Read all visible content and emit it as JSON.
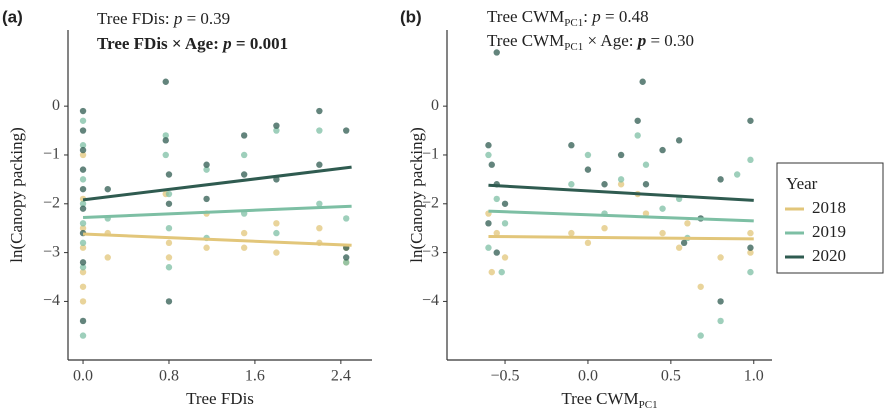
{
  "chart_data": [
    {
      "type": "scatter",
      "panel_label": "(a)",
      "annotations": [
        {
          "bold": false,
          "parts": [
            {
              "text": "Tree FDis: "
            },
            {
              "text": "p",
              "style": "italic"
            },
            {
              "text": " = 0.39"
            }
          ]
        },
        {
          "bold": true,
          "parts": [
            {
              "text": "Tree FDis × Age: "
            },
            {
              "text": "p",
              "style": "italic"
            },
            {
              "text": " = 0.001"
            }
          ]
        }
      ],
      "xlabel": [
        {
          "text": "Tree FDis"
        }
      ],
      "ylabel": "ln(Canopy packing)",
      "legend_title": "Year",
      "xlim": [
        -0.14,
        2.69
      ],
      "ylim": [
        -5.2,
        1.56
      ],
      "xticks": [
        {
          "value": 0,
          "label": "0.0"
        },
        0.8,
        1.6,
        2.4
      ],
      "yticks": [
        0,
        {
          "value": -1,
          "label": "−1"
        },
        {
          "value": -2,
          "label": "−2"
        },
        {
          "value": -3,
          "label": "−3"
        },
        {
          "value": -4,
          "label": "−4"
        }
      ],
      "series": [
        {
          "name": "2018",
          "color": "#e2c67a",
          "x": [
            0,
            0,
            0,
            0,
            0,
            0,
            0,
            0.23,
            0.23,
            0.77,
            0.8,
            0.8,
            1.15,
            1.15,
            1.5,
            1.5,
            1.8,
            1.8,
            2.2,
            2.2,
            2.45,
            2.45
          ],
          "values": [
            -1.0,
            -1.9,
            -2.5,
            -2.9,
            -3.4,
            -3.7,
            -4.0,
            -2.6,
            -3.1,
            -1.8,
            -2.8,
            -3.1,
            -2.2,
            -2.9,
            -2.6,
            -2.9,
            -2.4,
            -3.0,
            -2.5,
            -2.8,
            -2.9,
            -3.2
          ],
          "trend": {
            "x": [
              0,
              2.5
            ],
            "y": [
              -2.62,
              -2.85
            ]
          }
        },
        {
          "name": "2019",
          "color": "#7dbfa4",
          "x": [
            0,
            0,
            0,
            0,
            0,
            0,
            0,
            0,
            0.23,
            0.77,
            0.77,
            0.8,
            0.8,
            0.8,
            1.15,
            1.15,
            1.5,
            1.5,
            1.8,
            1.8,
            2.2,
            2.2,
            2.45,
            2.45
          ],
          "values": [
            -0.3,
            -0.8,
            -1.5,
            -2.0,
            -2.4,
            -2.8,
            -3.3,
            -4.7,
            -2.3,
            -0.6,
            -1.0,
            -1.8,
            -2.5,
            -3.3,
            -1.3,
            -2.7,
            -1.0,
            -2.2,
            -0.5,
            -2.6,
            -0.5,
            -2.0,
            -2.3,
            -3.2
          ],
          "trend": {
            "x": [
              0,
              2.5
            ],
            "y": [
              -2.28,
              -2.05
            ]
          }
        },
        {
          "name": "2020",
          "color": "#2f5b50",
          "x": [
            0,
            0,
            0,
            0,
            0,
            0,
            0,
            0,
            0,
            0.23,
            0.77,
            0.77,
            0.8,
            0.8,
            0.8,
            1.15,
            1.15,
            1.5,
            1.5,
            1.8,
            1.8,
            2.2,
            2.2,
            2.45,
            2.45,
            2.45
          ],
          "values": [
            -0.1,
            -0.5,
            -0.9,
            -1.3,
            -1.7,
            -2.1,
            -2.6,
            -3.2,
            -4.4,
            -1.7,
            0.5,
            -0.7,
            -1.4,
            -2.0,
            -4.0,
            -1.2,
            -1.9,
            -0.6,
            -1.4,
            -0.4,
            -1.5,
            -0.1,
            -1.2,
            -0.5,
            -2.9,
            -3.1
          ],
          "trend": {
            "x": [
              0,
              2.5
            ],
            "y": [
              -1.92,
              -1.25
            ]
          }
        }
      ]
    },
    {
      "type": "scatter",
      "panel_label": "(b)",
      "annotations": [
        {
          "bold": false,
          "parts": [
            {
              "text": "Tree CWM"
            },
            {
              "text": "PC1",
              "style": "sub"
            },
            {
              "text": ": "
            },
            {
              "text": "p",
              "style": "italic"
            },
            {
              "text": " = 0.48"
            }
          ]
        },
        {
          "bold": false,
          "parts": [
            {
              "text": "Tree CWM"
            },
            {
              "text": "PC1",
              "style": "sub"
            },
            {
              "text": " × Age: "
            },
            {
              "text": "p",
              "style": "bold-italic"
            },
            {
              "text": " = 0.30"
            }
          ]
        }
      ],
      "xlabel": [
        {
          "text": "Tree CWM"
        },
        {
          "text": "PC1",
          "style": "sub"
        }
      ],
      "ylabel": "ln(Canopy packing)",
      "xlim": [
        -0.85,
        1.11
      ],
      "ylim": [
        -5.2,
        1.56
      ],
      "xticks": [
        {
          "value": -0.5,
          "label": "−0.5"
        },
        {
          "value": 0,
          "label": "0.0"
        },
        0.5,
        {
          "value": 1,
          "label": "1.0"
        }
      ],
      "yticks": [
        0,
        {
          "value": -1,
          "label": "−1"
        },
        {
          "value": -2,
          "label": "−2"
        },
        {
          "value": -3,
          "label": "−3"
        },
        {
          "value": -4,
          "label": "−4"
        }
      ],
      "series": [
        {
          "name": "2018",
          "color": "#e2c67a",
          "x": [
            -0.6,
            -0.55,
            -0.5,
            -0.58,
            -0.1,
            0.0,
            0.1,
            0.2,
            0.3,
            0.35,
            0.45,
            0.55,
            0.6,
            0.68,
            0.8,
            0.98,
            0.98
          ],
          "values": [
            -2.2,
            -2.6,
            -3.1,
            -3.4,
            -2.6,
            -2.8,
            -2.5,
            -1.6,
            -1.8,
            -2.2,
            -2.6,
            -2.9,
            -2.4,
            -3.7,
            -3.1,
            -2.6,
            -3.0
          ],
          "trend": {
            "x": [
              -0.6,
              1.0
            ],
            "y": [
              -2.67,
              -2.72
            ]
          }
        },
        {
          "name": "2019",
          "color": "#7dbfa4",
          "x": [
            -0.6,
            -0.55,
            -0.5,
            -0.6,
            -0.52,
            -0.1,
            0.0,
            0.1,
            0.2,
            0.3,
            0.35,
            0.45,
            0.55,
            0.6,
            0.68,
            0.8,
            0.9,
            0.98,
            0.98
          ],
          "values": [
            -1.0,
            -1.9,
            -2.4,
            -2.9,
            -3.4,
            -1.6,
            -1.0,
            -2.2,
            -1.5,
            -0.6,
            -1.2,
            -2.1,
            -1.9,
            -2.7,
            -4.7,
            -4.4,
            -1.4,
            -1.1,
            -3.4
          ],
          "trend": {
            "x": [
              -0.6,
              1.0
            ],
            "y": [
              -2.15,
              -2.35
            ]
          }
        },
        {
          "name": "2020",
          "color": "#2f5b50",
          "x": [
            -0.55,
            -0.6,
            -0.58,
            -0.55,
            -0.5,
            -0.6,
            -0.55,
            -0.1,
            0.0,
            0.1,
            0.2,
            0.3,
            0.33,
            0.35,
            0.45,
            0.55,
            0.58,
            0.68,
            0.8,
            0.8,
            0.98,
            0.98
          ],
          "values": [
            1.1,
            -0.8,
            -1.2,
            -1.6,
            -2.0,
            -2.4,
            -3.0,
            -0.8,
            -1.3,
            -1.6,
            -1.0,
            -0.3,
            0.5,
            -1.6,
            -0.9,
            -0.7,
            -2.8,
            -2.3,
            -1.5,
            -4.0,
            -0.3,
            -2.9
          ],
          "trend": {
            "x": [
              -0.6,
              1.0
            ],
            "y": [
              -1.62,
              -1.93
            ]
          }
        }
      ]
    }
  ]
}
